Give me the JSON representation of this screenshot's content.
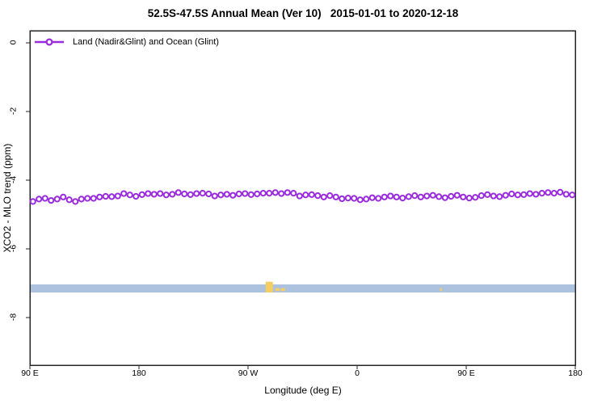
{
  "title": "52.5S-47.5S Annual Mean (Ver 10)   2015-01-01 to 2020-12-18",
  "legend": {
    "label": "Land (Nadir&Glint) and Ocean (Glint)"
  },
  "colors": {
    "series": "#9A2CDD",
    "marker_fill": "#FFFFFF",
    "axis": "#262626",
    "text": "#000000",
    "ocean_band": "#ADC2DF",
    "land_patch": "#F4CE63"
  },
  "axes": {
    "x_ticks": [
      {
        "axis_lon": 90,
        "label": "90 E"
      },
      {
        "axis_lon": 180,
        "label": "180"
      },
      {
        "axis_lon": 270,
        "label": "90 W"
      },
      {
        "axis_lon": 360,
        "label": "0"
      },
      {
        "axis_lon": 450,
        "label": "90 E"
      },
      {
        "axis_lon": 540,
        "label": "180"
      }
    ],
    "y_ticks": [
      {
        "value": 0,
        "label": "0"
      },
      {
        "value": -2,
        "label": "-2"
      },
      {
        "value": -4,
        "label": "-4"
      },
      {
        "value": -6,
        "label": "-6"
      },
      {
        "value": -8,
        "label": "-8"
      }
    ]
  },
  "chart_data": {
    "type": "line",
    "title": "52.5S-47.5S Annual Mean (Ver 10)   2015-01-01 to 2020-12-18",
    "xlabel": "Longitude (deg E)",
    "ylabel": "XCO2 - MLO trend (ppm)",
    "x_axis": {
      "start_deg": 90,
      "end_deg": 540,
      "tick_interval_deg": 90,
      "wraps_past_180": true
    },
    "ylim": [
      -9.4,
      0.35
    ],
    "grid": false,
    "legend_position": "top-left-inside",
    "marker": "open-circle",
    "series": [
      {
        "name": "Land (Nadir&Glint) and Ocean (Glint)",
        "color": "#9A2CDD",
        "x_start_deg": 92.5,
        "x_step_deg": 5,
        "values": [
          -4.62,
          -4.55,
          -4.53,
          -4.59,
          -4.55,
          -4.49,
          -4.57,
          -4.62,
          -4.55,
          -4.53,
          -4.53,
          -4.49,
          -4.47,
          -4.48,
          -4.46,
          -4.39,
          -4.43,
          -4.47,
          -4.42,
          -4.39,
          -4.41,
          -4.39,
          -4.43,
          -4.41,
          -4.36,
          -4.4,
          -4.42,
          -4.39,
          -4.38,
          -4.4,
          -4.46,
          -4.43,
          -4.41,
          -4.44,
          -4.4,
          -4.39,
          -4.42,
          -4.4,
          -4.38,
          -4.38,
          -4.36,
          -4.39,
          -4.36,
          -4.38,
          -4.46,
          -4.43,
          -4.42,
          -4.45,
          -4.49,
          -4.45,
          -4.49,
          -4.54,
          -4.52,
          -4.53,
          -4.57,
          -4.55,
          -4.51,
          -4.53,
          -4.49,
          -4.46,
          -4.49,
          -4.52,
          -4.48,
          -4.45,
          -4.49,
          -4.46,
          -4.44,
          -4.48,
          -4.51,
          -4.47,
          -4.44,
          -4.49,
          -4.52,
          -4.5,
          -4.45,
          -4.42,
          -4.46,
          -4.48,
          -4.44,
          -4.4,
          -4.43,
          -4.42,
          -4.39,
          -4.41,
          -4.38,
          -4.36,
          -4.38,
          -4.35,
          -4.41,
          -4.43
        ]
      }
    ],
    "surface_band": {
      "ocean_color": "#ADC2DF",
      "land_color": "#F4CE63",
      "y_top_value": -7.04,
      "y_bottom_value": -7.27,
      "land_patches": [
        {
          "lon_start": 284.5,
          "lon_end": 290.5,
          "rise_above_band": true
        },
        {
          "lon_start": 292.5,
          "lon_end": 296.0,
          "rise_above_band": false
        },
        {
          "lon_start": 297.0,
          "lon_end": 300.5,
          "rise_above_band": false
        },
        {
          "lon_start": 428.3,
          "lon_end": 429.8,
          "rise_above_band": false
        }
      ]
    }
  }
}
